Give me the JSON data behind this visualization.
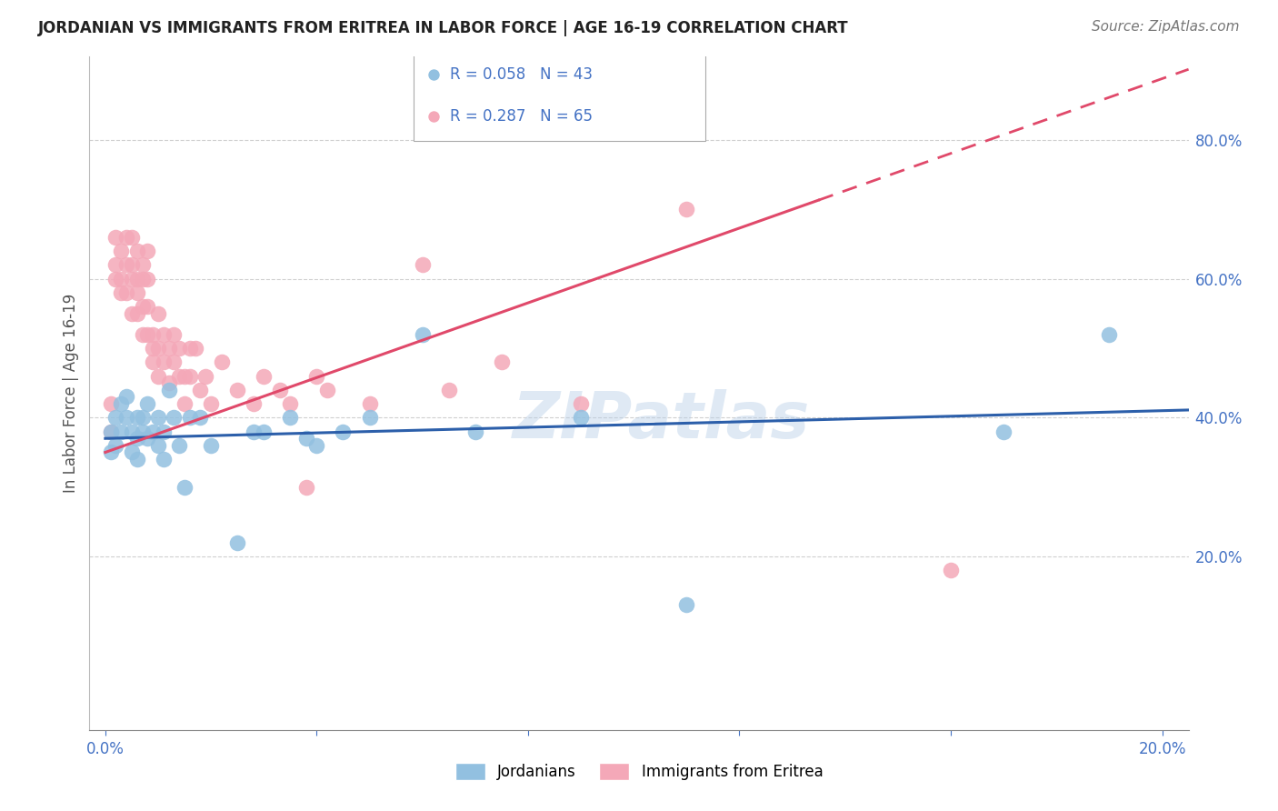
{
  "title": "JORDANIAN VS IMMIGRANTS FROM ERITREA IN LABOR FORCE | AGE 16-19 CORRELATION CHART",
  "source": "Source: ZipAtlas.com",
  "ylabel": "In Labor Force | Age 16-19",
  "xlim": [
    -0.003,
    0.205
  ],
  "ylim": [
    -0.05,
    0.92
  ],
  "x_ticks": [
    0.0,
    0.04,
    0.08,
    0.12,
    0.16,
    0.2
  ],
  "x_tick_labels": [
    "0.0%",
    "",
    "",
    "",
    "",
    "20.0%"
  ],
  "y_ticks_right": [
    0.2,
    0.4,
    0.6,
    0.8
  ],
  "y_tick_labels_right": [
    "20.0%",
    "40.0%",
    "60.0%",
    "80.0%"
  ],
  "background_color": "#ffffff",
  "grid_color": "#d0d0d0",
  "watermark": "ZIPatlas",
  "blue_color": "#92c0e0",
  "pink_color": "#f4a8b8",
  "blue_line_color": "#2c5faa",
  "pink_line_color": "#e0496a",
  "legend_r_blue": "R = 0.058",
  "legend_n_blue": "N = 43",
  "legend_r_pink": "R = 0.287",
  "legend_n_pink": "N = 65",
  "legend_label_blue": "Jordanians",
  "legend_label_pink": "Immigrants from Eritrea",
  "blue_scatter_x": [
    0.001,
    0.001,
    0.002,
    0.002,
    0.003,
    0.003,
    0.004,
    0.004,
    0.005,
    0.005,
    0.006,
    0.006,
    0.006,
    0.007,
    0.007,
    0.008,
    0.008,
    0.009,
    0.01,
    0.01,
    0.011,
    0.011,
    0.012,
    0.013,
    0.014,
    0.015,
    0.016,
    0.018,
    0.02,
    0.025,
    0.028,
    0.03,
    0.035,
    0.038,
    0.04,
    0.045,
    0.05,
    0.06,
    0.07,
    0.09,
    0.11,
    0.17,
    0.19
  ],
  "blue_scatter_y": [
    0.38,
    0.35,
    0.4,
    0.36,
    0.42,
    0.38,
    0.4,
    0.43,
    0.38,
    0.35,
    0.4,
    0.37,
    0.34,
    0.4,
    0.38,
    0.42,
    0.37,
    0.38,
    0.4,
    0.36,
    0.38,
    0.34,
    0.44,
    0.4,
    0.36,
    0.3,
    0.4,
    0.4,
    0.36,
    0.22,
    0.38,
    0.38,
    0.4,
    0.37,
    0.36,
    0.38,
    0.4,
    0.52,
    0.38,
    0.4,
    0.13,
    0.38,
    0.52
  ],
  "pink_scatter_x": [
    0.001,
    0.001,
    0.002,
    0.002,
    0.002,
    0.003,
    0.003,
    0.003,
    0.004,
    0.004,
    0.004,
    0.005,
    0.005,
    0.005,
    0.005,
    0.006,
    0.006,
    0.006,
    0.006,
    0.007,
    0.007,
    0.007,
    0.007,
    0.008,
    0.008,
    0.008,
    0.008,
    0.009,
    0.009,
    0.009,
    0.01,
    0.01,
    0.01,
    0.011,
    0.011,
    0.012,
    0.012,
    0.013,
    0.013,
    0.014,
    0.014,
    0.015,
    0.015,
    0.016,
    0.016,
    0.017,
    0.018,
    0.019,
    0.02,
    0.022,
    0.025,
    0.028,
    0.03,
    0.033,
    0.035,
    0.038,
    0.04,
    0.042,
    0.05,
    0.06,
    0.065,
    0.075,
    0.09,
    0.11,
    0.16
  ],
  "pink_scatter_y": [
    0.42,
    0.38,
    0.66,
    0.62,
    0.6,
    0.64,
    0.6,
    0.58,
    0.66,
    0.62,
    0.58,
    0.66,
    0.62,
    0.6,
    0.55,
    0.64,
    0.6,
    0.58,
    0.55,
    0.62,
    0.6,
    0.56,
    0.52,
    0.64,
    0.6,
    0.56,
    0.52,
    0.5,
    0.52,
    0.48,
    0.55,
    0.5,
    0.46,
    0.52,
    0.48,
    0.5,
    0.45,
    0.52,
    0.48,
    0.46,
    0.5,
    0.46,
    0.42,
    0.5,
    0.46,
    0.5,
    0.44,
    0.46,
    0.42,
    0.48,
    0.44,
    0.42,
    0.46,
    0.44,
    0.42,
    0.3,
    0.46,
    0.44,
    0.42,
    0.62,
    0.44,
    0.48,
    0.42,
    0.7,
    0.18
  ],
  "title_color": "#222222",
  "axis_color": "#4472c4",
  "ylabel_color": "#555555"
}
